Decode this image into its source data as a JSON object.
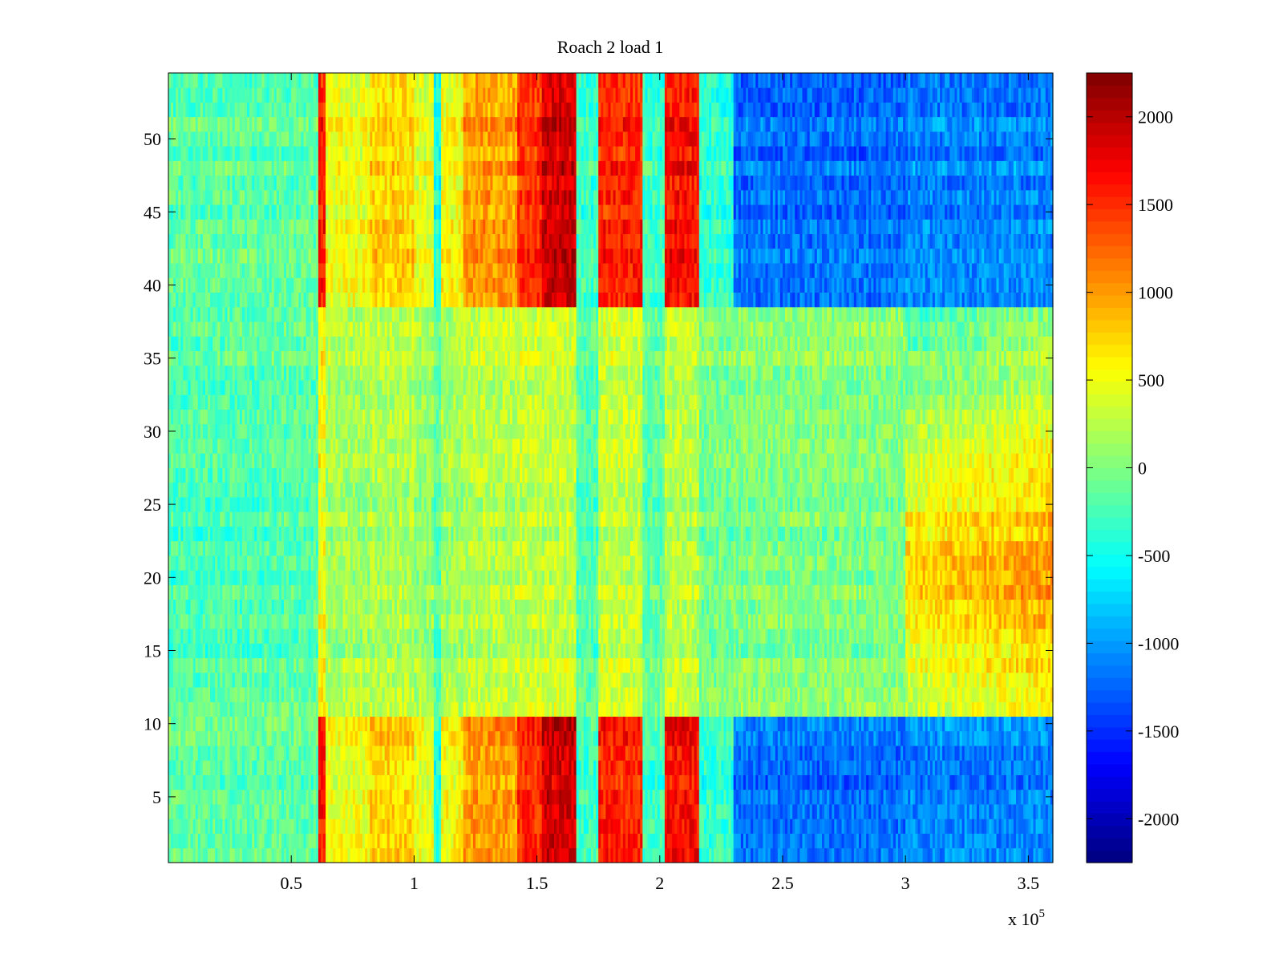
{
  "chart_data": {
    "type": "heatmap",
    "title": "Roach 2 load 1",
    "xlabel": "",
    "ylabel": "",
    "x_exponent_label": "x 10",
    "x_exponent": "5",
    "xlim": [
      0,
      360000
    ],
    "ylim": [
      0.5,
      54.5
    ],
    "x_ticks": [
      {
        "value": 50000,
        "label": "0.5"
      },
      {
        "value": 100000,
        "label": "1"
      },
      {
        "value": 150000,
        "label": "1.5"
      },
      {
        "value": 200000,
        "label": "2"
      },
      {
        "value": 250000,
        "label": "2.5"
      },
      {
        "value": 300000,
        "label": "3"
      },
      {
        "value": 350000,
        "label": "3.5"
      }
    ],
    "y_ticks": [
      {
        "value": 5,
        "label": "5"
      },
      {
        "value": 10,
        "label": "10"
      },
      {
        "value": 15,
        "label": "15"
      },
      {
        "value": 20,
        "label": "20"
      },
      {
        "value": 25,
        "label": "25"
      },
      {
        "value": 30,
        "label": "30"
      },
      {
        "value": 35,
        "label": "35"
      },
      {
        "value": 40,
        "label": "40"
      },
      {
        "value": 45,
        "label": "45"
      },
      {
        "value": 50,
        "label": "50"
      }
    ],
    "colorbar": {
      "colormap": "jet",
      "range": [
        -2250,
        2250
      ],
      "ticks": [
        {
          "value": 2000,
          "label": "2000"
        },
        {
          "value": 1500,
          "label": "1500"
        },
        {
          "value": 1000,
          "label": "1000"
        },
        {
          "value": 500,
          "label": "500"
        },
        {
          "value": 0,
          "label": "0"
        },
        {
          "value": -500,
          "label": "-500"
        },
        {
          "value": -1000,
          "label": "-1000"
        },
        {
          "value": -1500,
          "label": "-1500"
        },
        {
          "value": -2000,
          "label": "-2000"
        }
      ]
    },
    "rows": 54,
    "columns": 360,
    "column_width": 1000,
    "grid": false,
    "bands": [
      {
        "x_range": [
          61000,
          64000
        ],
        "edge_value": 1600,
        "center_value": 500
      },
      {
        "x_range": [
          64000,
          82000
        ],
        "edge_value": 500,
        "center_value": 150
      },
      {
        "x_range": [
          82000,
          100000
        ],
        "edge_value": 750,
        "center_value": 200
      },
      {
        "x_range": [
          100000,
          108000
        ],
        "edge_value": 450,
        "center_value": 100
      },
      {
        "x_range": [
          108000,
          111000
        ],
        "edge_value": -450,
        "center_value": -200
      },
      {
        "x_range": [
          111000,
          120000
        ],
        "edge_value": 550,
        "center_value": 150
      },
      {
        "x_range": [
          120000,
          142000
        ],
        "edge_value": 1000,
        "center_value": 250
      },
      {
        "x_range": [
          142000,
          152000
        ],
        "edge_value": 1500,
        "center_value": 300
      },
      {
        "x_range": [
          152000,
          166000
        ],
        "edge_value": 1900,
        "center_value": 300
      },
      {
        "x_range": [
          166000,
          175000
        ],
        "edge_value": -300,
        "center_value": -200
      },
      {
        "x_range": [
          175000,
          193000
        ],
        "edge_value": 1550,
        "center_value": 300
      },
      {
        "x_range": [
          193000,
          202000
        ],
        "edge_value": -300,
        "center_value": -150
      },
      {
        "x_range": [
          202000,
          216000
        ],
        "edge_value": 1650,
        "center_value": 250
      },
      {
        "x_range": [
          216000,
          230000
        ],
        "edge_value": -350,
        "center_value": -50
      },
      {
        "x_range": [
          230000,
          300000
        ],
        "edge_value": -1200,
        "center_value": 0
      },
      {
        "x_range": [
          300000,
          360000
        ],
        "edge_value": -1100,
        "center_value": 800
      }
    ],
    "row_bands": [
      {
        "y_range": [
          1,
          10
        ],
        "region": "edge"
      },
      {
        "y_range": [
          11,
          38
        ],
        "region": "center"
      },
      {
        "y_range": [
          39,
          54
        ],
        "region": "edge"
      }
    ]
  }
}
